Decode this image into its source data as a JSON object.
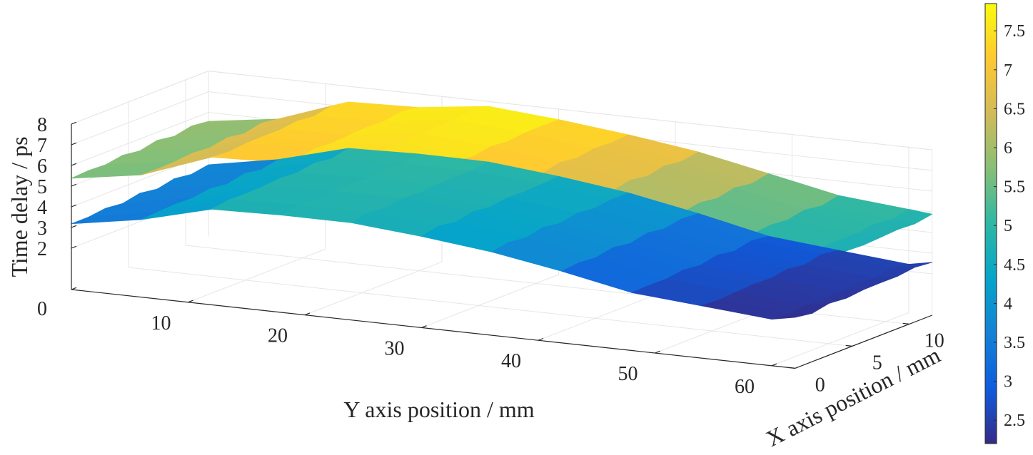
{
  "chart_data": {
    "type": "surface3d",
    "title": "",
    "xlabel": "X axis position / mm",
    "ylabel": "Y axis position / mm",
    "zlabel": "Time delay / ps",
    "x_ticks": [
      0,
      5,
      10
    ],
    "y_ticks": [
      10,
      20,
      30,
      40,
      50,
      60
    ],
    "z_ticks": [
      0,
      2,
      3,
      4,
      5,
      6,
      7,
      8
    ],
    "xlim": [
      0,
      12
    ],
    "ylim": [
      0,
      62
    ],
    "zlim": [
      0,
      8
    ],
    "grid": true,
    "colormap": "parula",
    "colorbar": {
      "location": "right",
      "range": [
        2.2,
        7.85
      ],
      "ticks": [
        2.5,
        3,
        3.5,
        4,
        4.5,
        5,
        5.5,
        6,
        6.5,
        7,
        7.5
      ]
    },
    "series": [
      {
        "y": [
          0,
          6,
          12,
          18,
          24,
          30,
          36,
          42,
          48,
          54,
          60,
          62
        ],
        "z": [
          5.5,
          6.0,
          7.2,
          7.3,
          7.7,
          7.4,
          7.0,
          6.5,
          5.8,
          5.1,
          4.8,
          4.7
        ]
      },
      {
        "y": [
          0,
          6,
          12,
          18,
          24,
          30,
          36,
          42,
          48,
          54,
          60,
          62
        ],
        "z": [
          3.3,
          3.9,
          4.8,
          4.9,
          4.9,
          4.6,
          4.2,
          3.6,
          2.9,
          2.6,
          2.3,
          2.5
        ]
      }
    ]
  },
  "colors": {
    "parula": [
      "#352a87",
      "#0f5cdd",
      "#1481d6",
      "#06a4ca",
      "#2eb7a4",
      "#87bf77",
      "#d1bb59",
      "#fec832",
      "#f9fb0e"
    ]
  }
}
